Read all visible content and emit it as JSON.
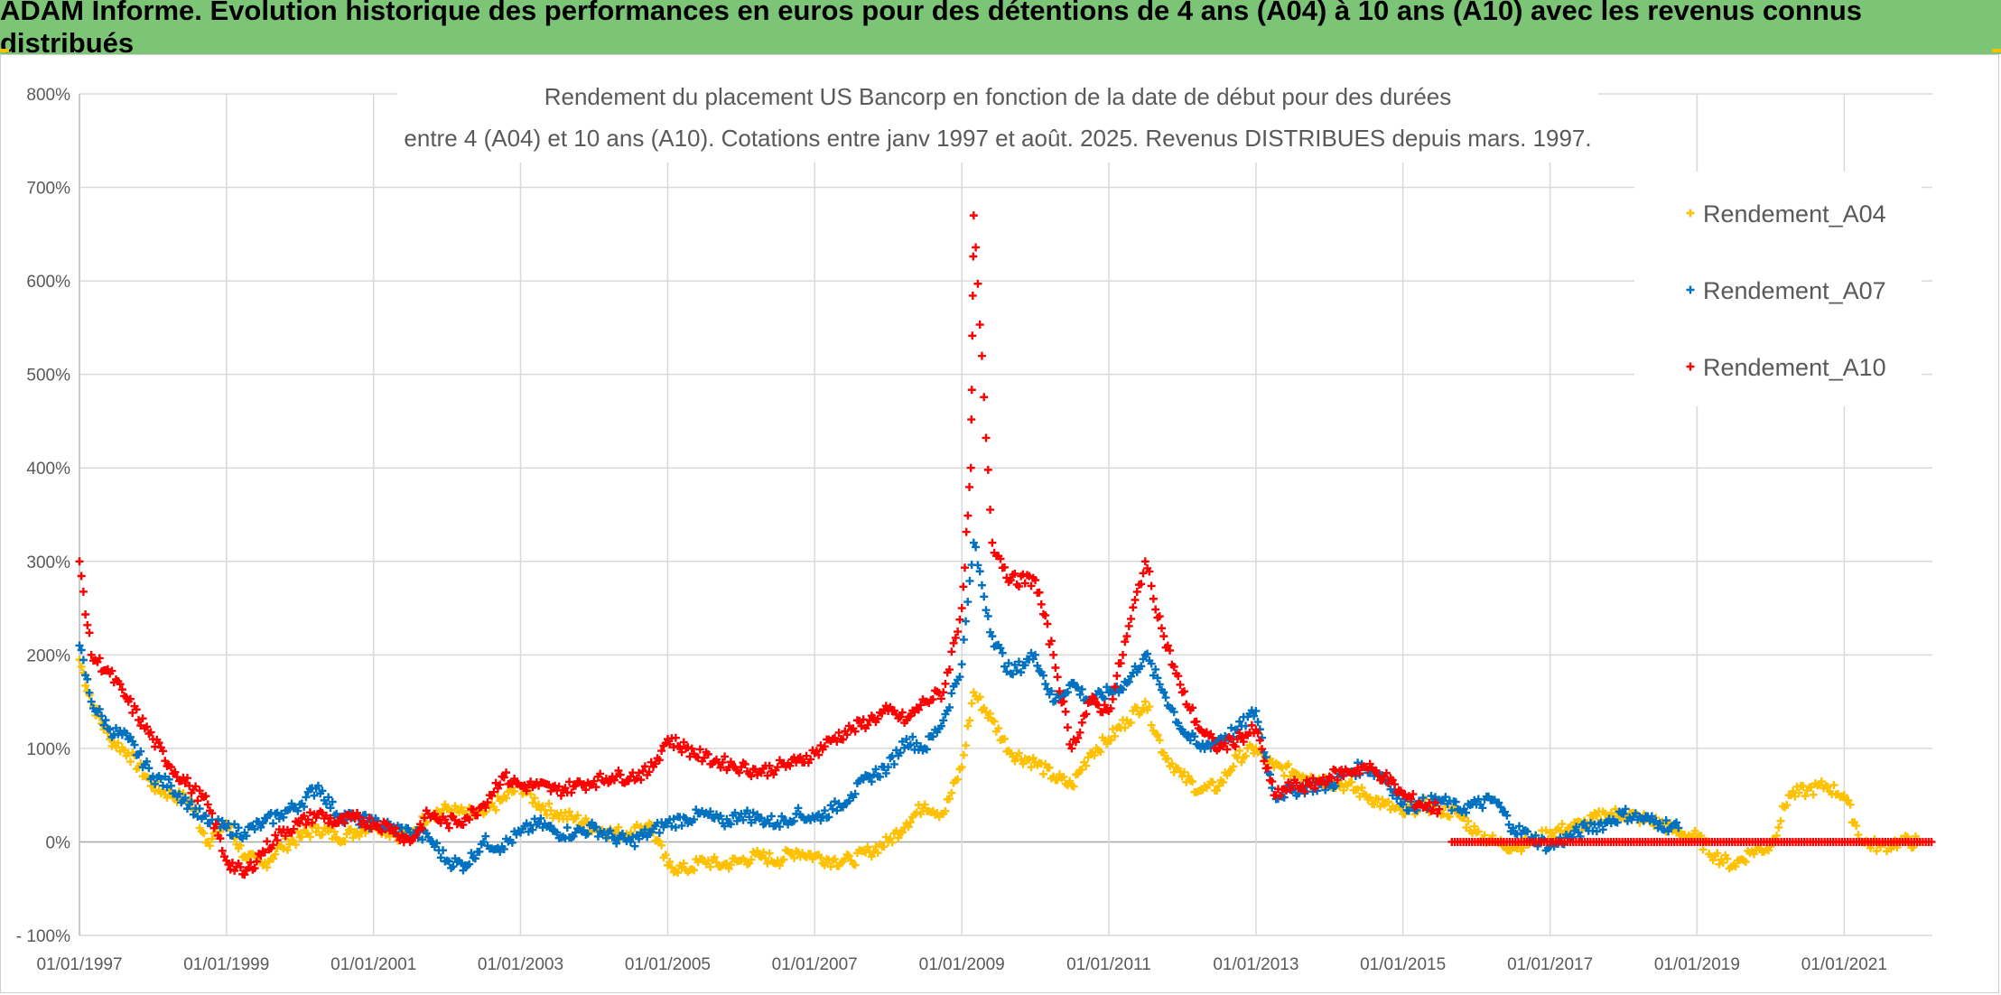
{
  "header": {
    "title": "ADAM Informe. Evolution historique des performances en euros pour des détentions de 4 ans (A04) à 10 ans (A10) avec les revenus connus distribués"
  },
  "colors": {
    "banner": "#7cc576",
    "A04": "#ffc000",
    "A07": "#0070c0",
    "A10": "#ff0000",
    "grid": "#d9d9d9"
  },
  "chart_data": {
    "type": "scatter",
    "title_lines": [
      "Rendement du placement US Bancorp en fonction de la date de début pour des durées",
      "entre 4 (A04) et 10 ans (A10). Cotations entre janv 1997 et août. 2025. Revenus DISTRIBUES depuis mars. 1997."
    ],
    "marker": "+",
    "grid": true,
    "legend_position": "top-right",
    "x_type": "date",
    "x_range": [
      "1997-01-01",
      "2022-03-15"
    ],
    "x_ticks": [
      "01/01/1997",
      "01/01/1999",
      "01/01/2001",
      "01/01/2003",
      "01/01/2005",
      "01/01/2007",
      "01/01/2009",
      "01/01/2011",
      "01/01/2013",
      "01/01/2015",
      "01/01/2017",
      "01/01/2019",
      "01/01/2021"
    ],
    "y_range": [
      -100,
      800
    ],
    "y_unit": "%",
    "y_ticks": [
      "- 100%",
      "0%",
      "100%",
      "200%",
      "300%",
      "400%",
      "500%",
      "600%",
      "700%",
      "800%"
    ],
    "series": [
      {
        "name": "Rendement_A04",
        "color": "#ffc000",
        "points": [
          [
            "1997-01-01",
            195
          ],
          [
            "1997-03-01",
            150
          ],
          [
            "1997-06-01",
            110
          ],
          [
            "1997-09-01",
            95
          ],
          [
            "1998-01-01",
            60
          ],
          [
            "1998-04-01",
            50
          ],
          [
            "1998-07-01",
            45
          ],
          [
            "1998-10-01",
            0
          ],
          [
            "1999-01-01",
            20
          ],
          [
            "1999-04-01",
            -15
          ],
          [
            "1999-07-01",
            -25
          ],
          [
            "1999-10-01",
            -5
          ],
          [
            "2000-01-01",
            5
          ],
          [
            "2000-04-01",
            15
          ],
          [
            "2000-07-01",
            5
          ],
          [
            "2000-10-01",
            10
          ],
          [
            "2001-01-01",
            20
          ],
          [
            "2001-04-01",
            10
          ],
          [
            "2001-07-01",
            5
          ],
          [
            "2001-10-01",
            30
          ],
          [
            "2002-01-01",
            35
          ],
          [
            "2002-04-01",
            30
          ],
          [
            "2002-07-01",
            30
          ],
          [
            "2002-10-01",
            45
          ],
          [
            "2003-01-01",
            60
          ],
          [
            "2003-04-01",
            40
          ],
          [
            "2003-07-01",
            30
          ],
          [
            "2003-10-01",
            25
          ],
          [
            "2004-01-01",
            15
          ],
          [
            "2004-04-01",
            10
          ],
          [
            "2004-07-01",
            10
          ],
          [
            "2004-10-01",
            20
          ],
          [
            "2005-01-01",
            -25
          ],
          [
            "2005-04-01",
            -30
          ],
          [
            "2005-07-01",
            -20
          ],
          [
            "2005-10-01",
            -25
          ],
          [
            "2006-01-01",
            -20
          ],
          [
            "2006-04-01",
            -15
          ],
          [
            "2006-07-01",
            -20
          ],
          [
            "2006-10-01",
            -10
          ],
          [
            "2007-01-01",
            -15
          ],
          [
            "2007-04-01",
            -20
          ],
          [
            "2007-07-01",
            -20
          ],
          [
            "2007-10-01",
            -10
          ],
          [
            "2008-01-01",
            0
          ],
          [
            "2008-04-01",
            20
          ],
          [
            "2008-07-01",
            40
          ],
          [
            "2008-10-01",
            30
          ],
          [
            "2009-01-01",
            80
          ],
          [
            "2009-03-01",
            160
          ],
          [
            "2009-06-01",
            130
          ],
          [
            "2009-09-01",
            95
          ],
          [
            "2010-01-01",
            85
          ],
          [
            "2010-04-01",
            70
          ],
          [
            "2010-07-01",
            60
          ],
          [
            "2010-10-01",
            95
          ],
          [
            "2011-01-01",
            110
          ],
          [
            "2011-04-01",
            130
          ],
          [
            "2011-07-01",
            150
          ],
          [
            "2011-10-01",
            95
          ],
          [
            "2012-01-01",
            70
          ],
          [
            "2012-04-01",
            55
          ],
          [
            "2012-07-01",
            60
          ],
          [
            "2012-10-01",
            90
          ],
          [
            "2013-01-01",
            100
          ],
          [
            "2013-04-01",
            80
          ],
          [
            "2013-07-01",
            75
          ],
          [
            "2013-10-01",
            70
          ],
          [
            "2014-01-01",
            65
          ],
          [
            "2014-04-01",
            60
          ],
          [
            "2014-07-01",
            50
          ],
          [
            "2014-10-01",
            40
          ],
          [
            "2015-01-01",
            30
          ],
          [
            "2015-04-01",
            40
          ],
          [
            "2015-07-01",
            35
          ],
          [
            "2015-10-01",
            30
          ],
          [
            "2016-01-01",
            10
          ],
          [
            "2016-04-01",
            0
          ],
          [
            "2016-07-01",
            -5
          ],
          [
            "2016-10-01",
            0
          ],
          [
            "2017-01-01",
            10
          ],
          [
            "2017-04-01",
            15
          ],
          [
            "2017-07-01",
            20
          ],
          [
            "2017-10-01",
            30
          ],
          [
            "2018-01-01",
            30
          ],
          [
            "2018-04-01",
            25
          ],
          [
            "2018-07-01",
            20
          ],
          [
            "2018-10-01",
            10
          ],
          [
            "2019-01-01",
            5
          ],
          [
            "2019-04-01",
            -15
          ],
          [
            "2019-07-01",
            -25
          ],
          [
            "2019-10-01",
            -10
          ],
          [
            "2020-01-01",
            -5
          ],
          [
            "2020-04-01",
            50
          ],
          [
            "2020-07-01",
            55
          ],
          [
            "2020-10-01",
            60
          ],
          [
            "2021-01-01",
            50
          ],
          [
            "2021-04-01",
            0
          ],
          [
            "2021-07-01",
            -5
          ],
          [
            "2021-10-01",
            0
          ],
          [
            "2022-01-01",
            0
          ]
        ]
      },
      {
        "name": "Rendement_A07",
        "color": "#0070c0",
        "points": [
          [
            "1997-01-01",
            210
          ],
          [
            "1997-03-01",
            150
          ],
          [
            "1997-06-01",
            120
          ],
          [
            "1997-09-01",
            110
          ],
          [
            "1998-01-01",
            70
          ],
          [
            "1998-04-01",
            60
          ],
          [
            "1998-07-01",
            40
          ],
          [
            "1998-10-01",
            20
          ],
          [
            "1999-01-01",
            15
          ],
          [
            "1999-04-01",
            10
          ],
          [
            "1999-07-01",
            20
          ],
          [
            "1999-10-01",
            30
          ],
          [
            "2000-01-01",
            40
          ],
          [
            "2000-04-01",
            60
          ],
          [
            "2000-07-01",
            30
          ],
          [
            "2000-10-01",
            25
          ],
          [
            "2001-01-01",
            20
          ],
          [
            "2001-04-01",
            15
          ],
          [
            "2001-07-01",
            10
          ],
          [
            "2001-10-01",
            5
          ],
          [
            "2002-01-01",
            -20
          ],
          [
            "2002-04-01",
            -25
          ],
          [
            "2002-07-01",
            0
          ],
          [
            "2002-10-01",
            -5
          ],
          [
            "2003-01-01",
            10
          ],
          [
            "2003-04-01",
            20
          ],
          [
            "2003-07-01",
            10
          ],
          [
            "2003-10-01",
            10
          ],
          [
            "2004-01-01",
            15
          ],
          [
            "2004-04-01",
            5
          ],
          [
            "2004-07-01",
            0
          ],
          [
            "2004-10-01",
            10
          ],
          [
            "2005-01-01",
            20
          ],
          [
            "2005-04-01",
            25
          ],
          [
            "2005-07-01",
            30
          ],
          [
            "2005-10-01",
            20
          ],
          [
            "2006-01-01",
            30
          ],
          [
            "2006-04-01",
            25
          ],
          [
            "2006-07-01",
            20
          ],
          [
            "2006-10-01",
            30
          ],
          [
            "2007-01-01",
            25
          ],
          [
            "2007-04-01",
            35
          ],
          [
            "2007-07-01",
            50
          ],
          [
            "2007-10-01",
            70
          ],
          [
            "2008-01-01",
            80
          ],
          [
            "2008-04-01",
            110
          ],
          [
            "2008-07-01",
            100
          ],
          [
            "2008-10-01",
            130
          ],
          [
            "2009-01-01",
            190
          ],
          [
            "2009-03-01",
            320
          ],
          [
            "2009-06-01",
            220
          ],
          [
            "2009-09-01",
            180
          ],
          [
            "2010-01-01",
            200
          ],
          [
            "2010-04-01",
            150
          ],
          [
            "2010-07-01",
            170
          ],
          [
            "2010-10-01",
            150
          ],
          [
            "2011-01-01",
            160
          ],
          [
            "2011-04-01",
            170
          ],
          [
            "2011-07-01",
            200
          ],
          [
            "2011-10-01",
            160
          ],
          [
            "2012-01-01",
            120
          ],
          [
            "2012-04-01",
            100
          ],
          [
            "2012-07-01",
            110
          ],
          [
            "2012-10-01",
            120
          ],
          [
            "2013-01-01",
            140
          ],
          [
            "2013-04-01",
            50
          ],
          [
            "2013-07-01",
            55
          ],
          [
            "2013-10-01",
            60
          ],
          [
            "2014-01-01",
            60
          ],
          [
            "2014-04-01",
            75
          ],
          [
            "2014-07-01",
            80
          ],
          [
            "2014-10-01",
            70
          ],
          [
            "2015-01-01",
            40
          ],
          [
            "2015-04-01",
            40
          ],
          [
            "2015-07-01",
            45
          ],
          [
            "2015-10-01",
            35
          ],
          [
            "2016-01-01",
            40
          ],
          [
            "2016-04-01",
            45
          ],
          [
            "2016-07-01",
            15
          ],
          [
            "2016-10-01",
            5
          ],
          [
            "2017-01-01",
            -5
          ],
          [
            "2017-04-01",
            5
          ],
          [
            "2017-07-01",
            15
          ],
          [
            "2017-10-01",
            20
          ],
          [
            "2018-01-01",
            30
          ],
          [
            "2018-04-01",
            25
          ],
          [
            "2018-07-01",
            20
          ],
          [
            "2018-10-01",
            15
          ]
        ]
      },
      {
        "name": "Rendement_A10",
        "color": "#ff0000",
        "points": [
          [
            "1997-01-01",
            300
          ],
          [
            "1997-03-01",
            200
          ],
          [
            "1997-06-01",
            180
          ],
          [
            "1997-09-01",
            150
          ],
          [
            "1998-01-01",
            110
          ],
          [
            "1998-04-01",
            80
          ],
          [
            "1998-07-01",
            60
          ],
          [
            "1998-10-01",
            40
          ],
          [
            "1999-01-01",
            -20
          ],
          [
            "1999-04-01",
            -35
          ],
          [
            "1999-07-01",
            -10
          ],
          [
            "1999-10-01",
            10
          ],
          [
            "2000-01-01",
            20
          ],
          [
            "2000-04-01",
            30
          ],
          [
            "2000-07-01",
            20
          ],
          [
            "2000-10-01",
            25
          ],
          [
            "2001-01-01",
            20
          ],
          [
            "2001-04-01",
            15
          ],
          [
            "2001-07-01",
            0
          ],
          [
            "2001-10-01",
            30
          ],
          [
            "2002-01-01",
            20
          ],
          [
            "2002-04-01",
            25
          ],
          [
            "2002-07-01",
            40
          ],
          [
            "2002-10-01",
            70
          ],
          [
            "2003-01-01",
            60
          ],
          [
            "2003-04-01",
            60
          ],
          [
            "2003-07-01",
            55
          ],
          [
            "2003-10-01",
            60
          ],
          [
            "2004-01-01",
            65
          ],
          [
            "2004-04-01",
            70
          ],
          [
            "2004-07-01",
            70
          ],
          [
            "2004-10-01",
            75
          ],
          [
            "2005-01-01",
            110
          ],
          [
            "2005-04-01",
            100
          ],
          [
            "2005-07-01",
            90
          ],
          [
            "2005-10-01",
            85
          ],
          [
            "2006-01-01",
            80
          ],
          [
            "2006-04-01",
            75
          ],
          [
            "2006-07-01",
            80
          ],
          [
            "2006-10-01",
            85
          ],
          [
            "2007-01-01",
            95
          ],
          [
            "2007-04-01",
            110
          ],
          [
            "2007-07-01",
            120
          ],
          [
            "2007-10-01",
            130
          ],
          [
            "2008-01-01",
            140
          ],
          [
            "2008-04-01",
            130
          ],
          [
            "2008-07-01",
            150
          ],
          [
            "2008-10-01",
            160
          ],
          [
            "2009-01-01",
            250
          ],
          [
            "2009-02-15",
            400
          ],
          [
            "2009-03-01",
            670
          ],
          [
            "2009-06-01",
            320
          ],
          [
            "2009-09-01",
            280
          ],
          [
            "2010-01-01",
            280
          ],
          [
            "2010-04-01",
            200
          ],
          [
            "2010-07-01",
            100
          ],
          [
            "2010-10-01",
            150
          ],
          [
            "2011-01-01",
            140
          ],
          [
            "2011-04-01",
            220
          ],
          [
            "2011-07-01",
            300
          ],
          [
            "2011-10-01",
            220
          ],
          [
            "2012-01-01",
            160
          ],
          [
            "2012-04-01",
            120
          ],
          [
            "2012-07-01",
            100
          ],
          [
            "2012-10-01",
            110
          ],
          [
            "2013-01-01",
            120
          ],
          [
            "2013-04-01",
            50
          ],
          [
            "2013-07-01",
            60
          ],
          [
            "2013-10-01",
            60
          ],
          [
            "2014-01-01",
            70
          ],
          [
            "2014-04-01",
            75
          ],
          [
            "2014-07-01",
            80
          ],
          [
            "2014-10-01",
            70
          ],
          [
            "2015-01-01",
            50
          ],
          [
            "2015-04-01",
            40
          ],
          [
            "2015-07-01",
            35
          ]
        ]
      }
    ],
    "flat_segment": {
      "series": "Rendement_A10",
      "from": "2015-09-01",
      "to": "2022-03-15",
      "value": 0
    }
  }
}
